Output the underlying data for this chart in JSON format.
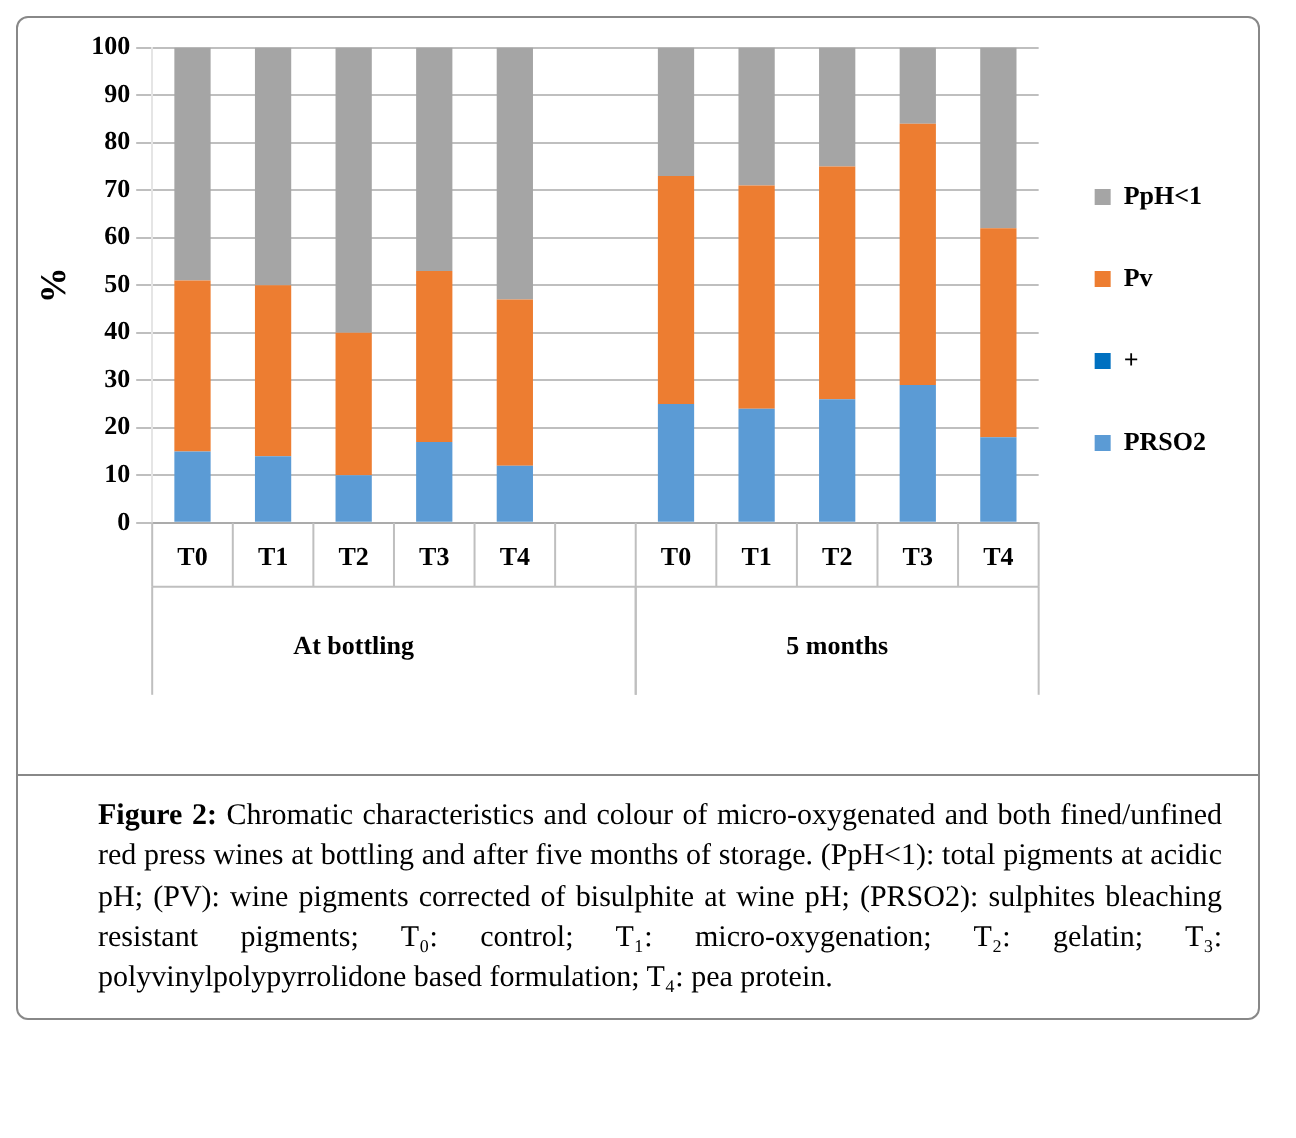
{
  "chart_data": {
    "type": "bar",
    "stacked": true,
    "ylabel": "%",
    "categories": [
      "T0",
      "T1",
      "T2",
      "T3",
      "T4",
      null,
      "T0",
      "T1",
      "T2",
      "T3",
      "T4"
    ],
    "series": [
      {
        "name": "PRSO2",
        "color": "#5b9bd5",
        "values": [
          15,
          14,
          10,
          17,
          12,
          null,
          25,
          24,
          26,
          29,
          18
        ]
      },
      {
        "name": "+",
        "color": "#0070c0",
        "values": [
          null,
          null,
          null,
          null,
          null,
          null,
          null,
          null,
          null,
          null,
          null
        ]
      },
      {
        "name": "Pv",
        "color": "#ed7d31",
        "values": [
          36,
          36,
          30,
          36,
          35,
          null,
          48,
          47,
          49,
          55,
          44
        ]
      },
      {
        "name": "PpH<1",
        "color": "#a5a5a5",
        "values": [
          49,
          50,
          60,
          47,
          53,
          null,
          27,
          29,
          25,
          16,
          38
        ]
      }
    ],
    "ylim": [
      0,
      100
    ],
    "yticks": [
      0,
      10,
      20,
      30,
      40,
      50,
      60,
      70,
      80,
      90,
      100
    ],
    "grid": "y",
    "legend": "right",
    "annotations": [
      "At bottling",
      "5 months",
      "Figure 2: Chromatic characteristics and colour of micro-oxygenated and both fined/unfined red press wines at bottling and after five months of storage. (PpH<1): total pigments at acidic pH; (PV): wine pigments corrected of bisulphite at wine pH; (PRSO2): sulphites bleaching resistant pigments; T₀: control; T₁: micro-oxygenation; T₂: gelatin; T₃: polyvinylpolypyrrolidone based formulation; T₄: pea protein."
    ]
  }
}
